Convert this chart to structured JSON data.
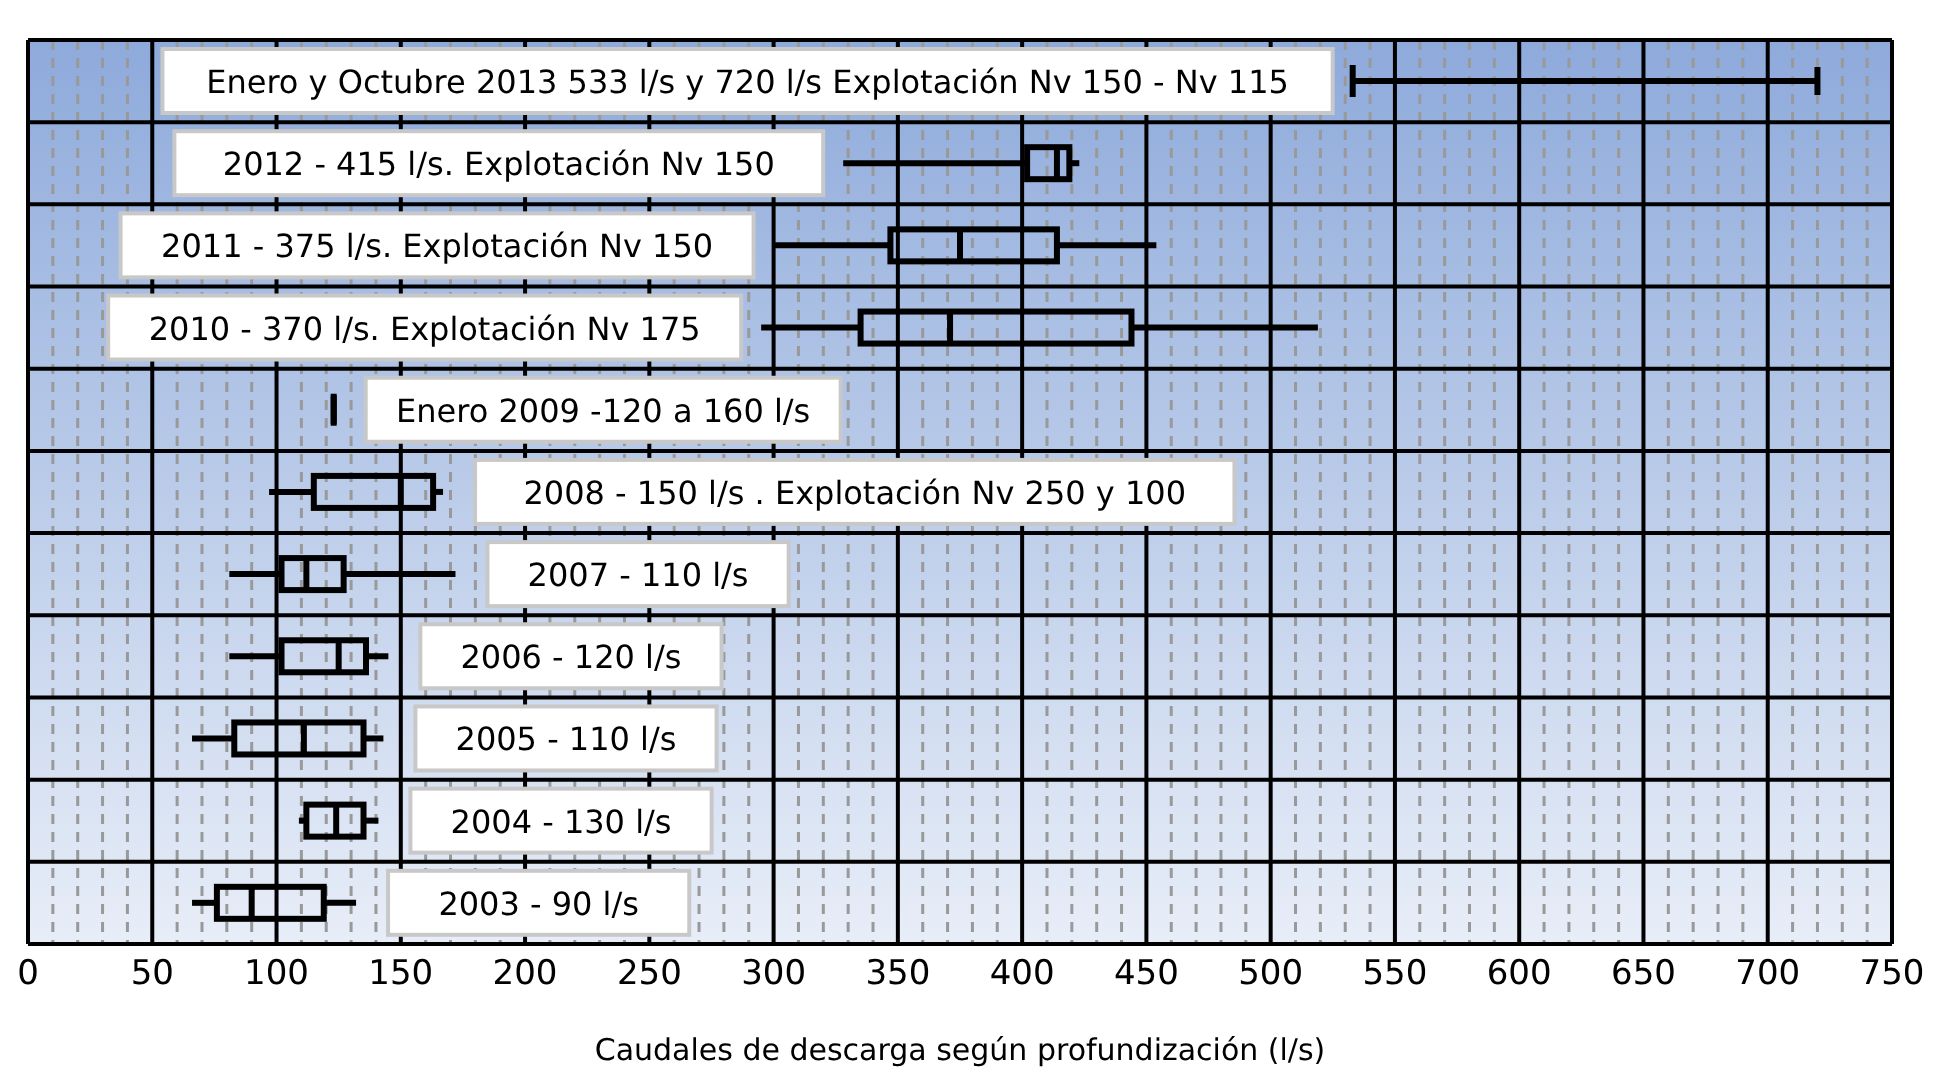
{
  "chart_data": {
    "type": "box",
    "orientation": "horizontal",
    "categories": [
      null,
      null,
      null,
      null,
      null,
      null,
      null,
      null,
      null,
      null,
      null
    ],
    "boxes": [
      {
        "low": 533,
        "q1": 533,
        "median": 533,
        "q3": 533,
        "high": 720
      },
      {
        "low": 328,
        "q1": 402,
        "median": 414,
        "q3": 419,
        "high": 423
      },
      {
        "low": 300,
        "q1": 347,
        "median": 375,
        "q3": 414,
        "high": 454
      },
      {
        "low": 295,
        "q1": 335,
        "median": 371,
        "q3": 444,
        "high": 519
      },
      {
        "low": 123,
        "q1": 123,
        "median": 123,
        "q3": 123,
        "high": 123
      },
      {
        "low": 97,
        "q1": 115,
        "median": 150,
        "q3": 163,
        "high": 167
      },
      {
        "low": 81,
        "q1": 102,
        "median": 112,
        "q3": 127,
        "high": 172
      },
      {
        "low": 81,
        "q1": 102,
        "median": 125,
        "q3": 136,
        "high": 145
      },
      {
        "low": 66,
        "q1": 83,
        "median": 111,
        "q3": 135,
        "high": 143
      },
      {
        "low": 109,
        "q1": 112,
        "median": 124,
        "q3": 135,
        "high": 141
      },
      {
        "low": 66,
        "q1": 76,
        "median": 90,
        "q3": 119,
        "high": 132
      }
    ],
    "color": "#000000",
    "annotations": [
      "Enero y Octubre  2013  533 l/s  y 720 l/s Explotación Nv 150 - Nv 115",
      "2012 -  415 l/s. Explotación  Nv 150",
      "2011 - 375 l/s. Explotación  Nv 150",
      "2010 - 370 l/s. Explotación  Nv 175",
      "Enero 2009 -120 a 160 l/s",
      "2008  - 150 l/s . Explotación  Nv 250 y 100",
      "2007 - 110 l/s",
      "2006 - 120 l/s",
      "2005 - 110 l/s",
      "2004 - 130 l/s",
      "2003  - 90 l/s"
    ],
    "xlabel": "Caudales de descarga  según  profundización (l/s)",
    "xlim": [
      0,
      750
    ],
    "xticks": [
      0,
      {
        "value": 10,
        "label": null
      },
      {
        "value": 20,
        "label": null
      },
      {
        "value": 30,
        "label": null
      },
      {
        "value": 40,
        "label": null
      },
      50,
      {
        "value": 60,
        "label": null
      },
      {
        "value": 70,
        "label": null
      },
      {
        "value": 80,
        "label": null
      },
      {
        "value": 90,
        "label": null
      },
      100,
      {
        "value": 110,
        "label": null
      },
      {
        "value": 120,
        "label": null
      },
      {
        "value": 130,
        "label": null
      },
      {
        "value": 140,
        "label": null
      },
      150,
      {
        "value": 160,
        "label": null
      },
      {
        "value": 170,
        "label": null
      },
      {
        "value": 180,
        "label": null
      },
      {
        "value": 190,
        "label": null
      },
      200,
      {
        "value": 210,
        "label": null
      },
      {
        "value": 220,
        "label": null
      },
      {
        "value": 230,
        "label": null
      },
      {
        "value": 240,
        "label": null
      },
      250,
      {
        "value": 260,
        "label": null
      },
      {
        "value": 270,
        "label": null
      },
      {
        "value": 280,
        "label": null
      },
      {
        "value": 290,
        "label": null
      },
      300,
      {
        "value": 310,
        "label": null
      },
      {
        "value": 320,
        "label": null
      },
      {
        "value": 330,
        "label": null
      },
      {
        "value": 340,
        "label": null
      },
      350,
      {
        "value": 360,
        "label": null
      },
      {
        "value": 370,
        "label": null
      },
      {
        "value": 380,
        "label": null
      },
      {
        "value": 390,
        "label": null
      },
      400,
      {
        "value": 410,
        "label": null
      },
      {
        "value": 420,
        "label": null
      },
      {
        "value": 430,
        "label": null
      },
      {
        "value": 440,
        "label": null
      },
      450,
      {
        "value": 460,
        "label": null
      },
      {
        "value": 470,
        "label": null
      },
      {
        "value": 480,
        "label": null
      },
      {
        "value": 490,
        "label": null
      },
      500,
      {
        "value": 510,
        "label": null
      },
      {
        "value": 520,
        "label": null
      },
      {
        "value": 530,
        "label": null
      },
      {
        "value": 540,
        "label": null
      },
      550,
      {
        "value": 560,
        "label": null
      },
      {
        "value": 570,
        "label": null
      },
      {
        "value": 580,
        "label": null
      },
      {
        "value": 590,
        "label": null
      },
      600,
      {
        "value": 610,
        "label": null
      },
      {
        "value": 620,
        "label": null
      },
      {
        "value": 630,
        "label": null
      },
      {
        "value": 640,
        "label": null
      },
      650,
      {
        "value": 660,
        "label": null
      },
      {
        "value": 670,
        "label": null
      },
      {
        "value": 680,
        "label": null
      },
      {
        "value": 690,
        "label": null
      },
      700,
      {
        "value": 710,
        "label": null
      },
      {
        "value": 720,
        "label": null
      },
      {
        "value": 730,
        "label": null
      },
      {
        "value": 740,
        "label": null
      },
      750
    ],
    "grid": "x"
  }
}
